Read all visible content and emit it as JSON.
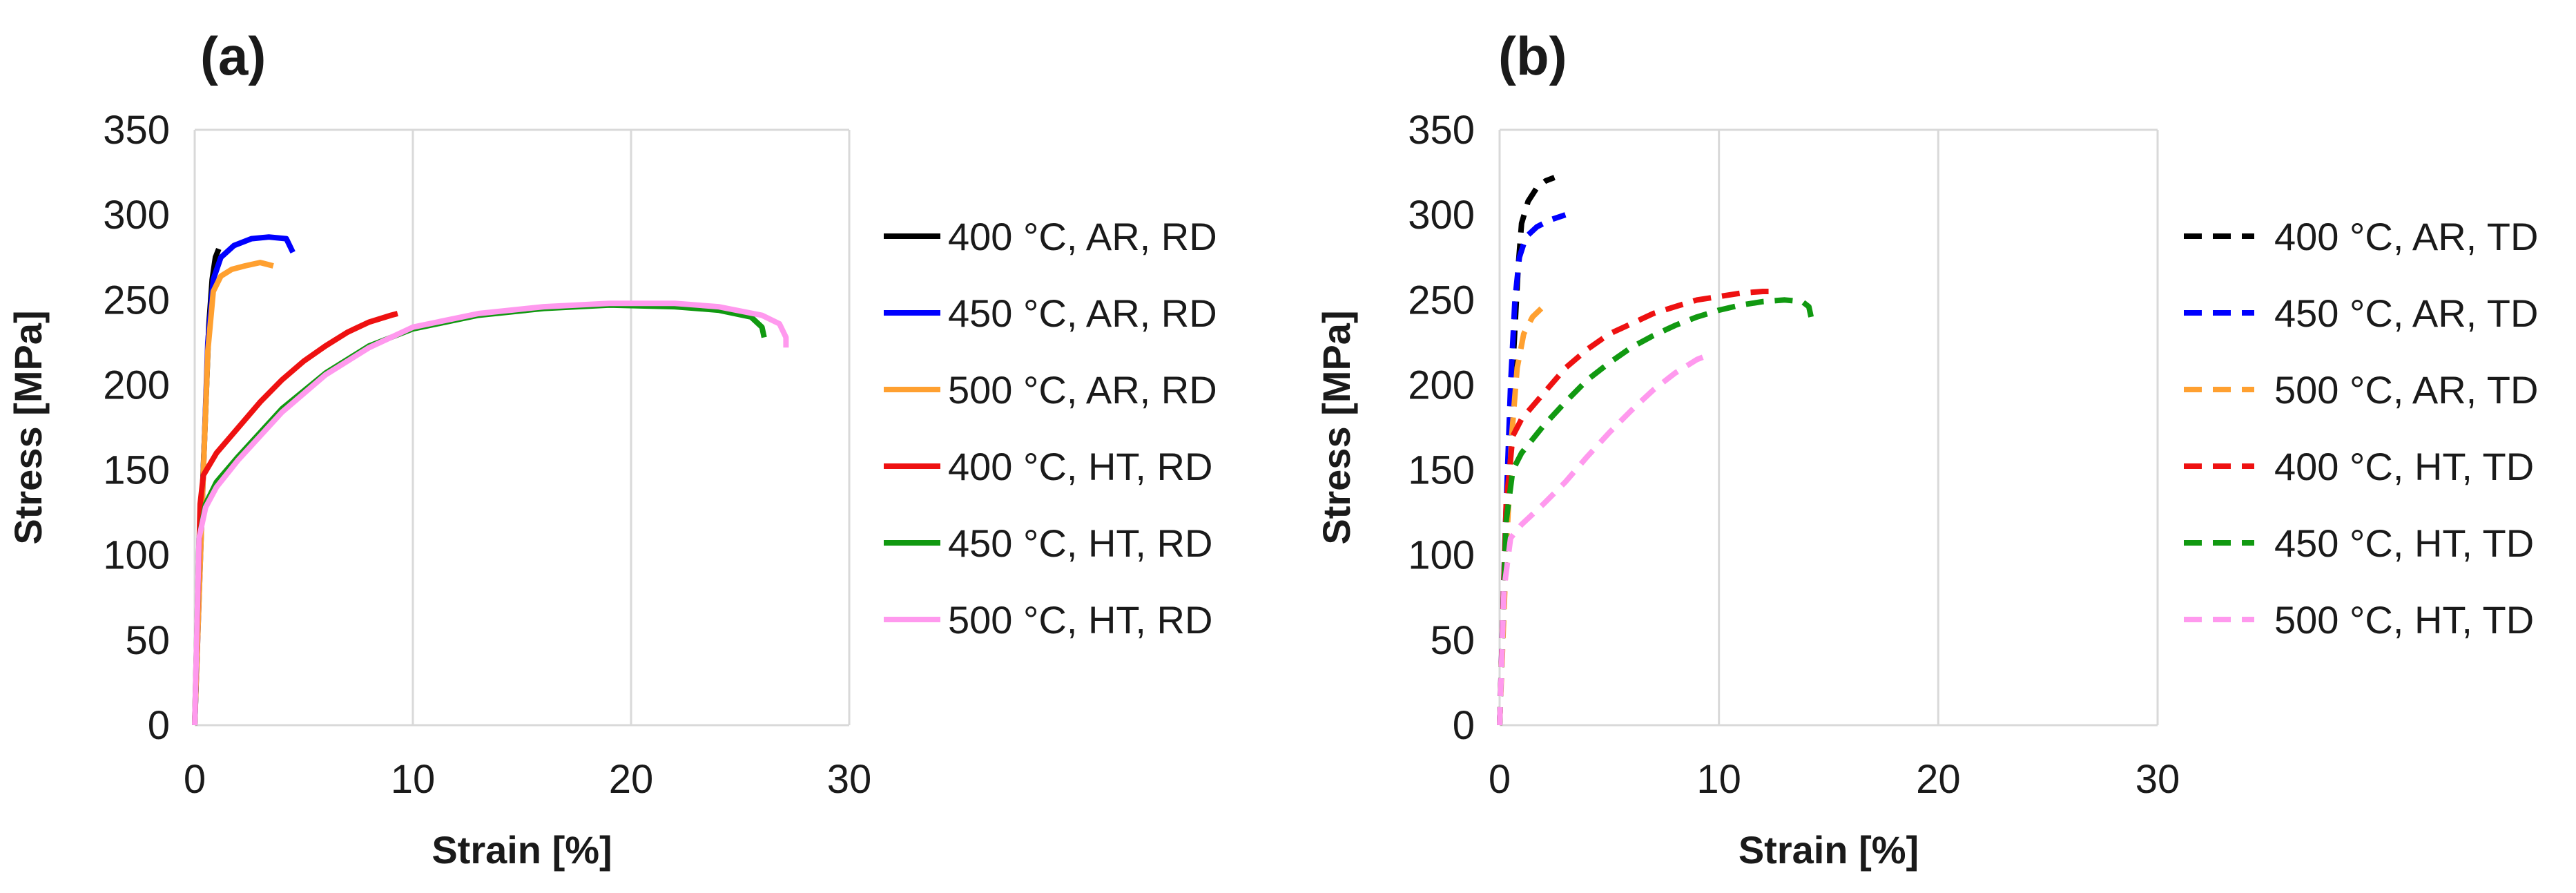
{
  "chart_data": [
    {
      "type": "line",
      "panel_label": "(a)",
      "xlabel": "Strain [%]",
      "ylabel": "Stress [MPa]",
      "xlim": [
        0,
        30
      ],
      "ylim": [
        0,
        350
      ],
      "xticks": [
        "0",
        "10",
        "20",
        "30"
      ],
      "yticks": [
        "0",
        "50",
        "100",
        "150",
        "200",
        "250",
        "300",
        "350"
      ],
      "grid": "vertical",
      "legend_position": "right",
      "series": [
        {
          "name": "400 °C, AR, RD",
          "color": "#000000",
          "dash": "solid",
          "points": [
            [
              0,
              0
            ],
            [
              0.3,
              120
            ],
            [
              0.5,
              185
            ],
            [
              0.65,
              235
            ],
            [
              0.8,
              262
            ],
            [
              0.95,
              275
            ],
            [
              1.1,
              280
            ]
          ]
        },
        {
          "name": "450 °C, AR, RD",
          "color": "#0000ff",
          "dash": "solid",
          "points": [
            [
              0,
              0
            ],
            [
              0.4,
              150
            ],
            [
              0.6,
              225
            ],
            [
              0.85,
              262
            ],
            [
              1.2,
              275
            ],
            [
              1.8,
              282
            ],
            [
              2.6,
              286
            ],
            [
              3.4,
              287
            ],
            [
              4.2,
              286
            ],
            [
              4.5,
              278
            ]
          ]
        },
        {
          "name": "500 °C, AR, RD",
          "color": "#ffa030",
          "dash": "solid",
          "points": [
            [
              0,
              0
            ],
            [
              0.4,
              150
            ],
            [
              0.6,
              220
            ],
            [
              0.85,
              255
            ],
            [
              1.2,
              264
            ],
            [
              1.7,
              268
            ],
            [
              2.3,
              270
            ],
            [
              3.0,
              272
            ],
            [
              3.6,
              270
            ]
          ]
        },
        {
          "name": "400 °C, HT, RD",
          "color": "#ee1111",
          "dash": "solid",
          "points": [
            [
              0,
              0
            ],
            [
              0.25,
              130
            ],
            [
              0.4,
              147
            ],
            [
              1,
              160
            ],
            [
              2,
              175
            ],
            [
              3,
              190
            ],
            [
              4,
              203
            ],
            [
              5,
              214
            ],
            [
              6,
              223
            ],
            [
              7,
              231
            ],
            [
              8,
              237
            ],
            [
              9,
              241
            ],
            [
              9.3,
              242
            ]
          ]
        },
        {
          "name": "450 °C, HT, RD",
          "color": "#119911",
          "dash": "solid",
          "points": [
            [
              0,
              0
            ],
            [
              0.2,
              110
            ],
            [
              0.5,
              130
            ],
            [
              1,
              143
            ],
            [
              2,
              158
            ],
            [
              3,
              172
            ],
            [
              4,
              186
            ],
            [
              6,
              207
            ],
            [
              8,
              223
            ],
            [
              10,
              233
            ],
            [
              13,
              241
            ],
            [
              16,
              245
            ],
            [
              19,
              247
            ],
            [
              22,
              246
            ],
            [
              24,
              244
            ],
            [
              25.5,
              240
            ],
            [
              26,
              234
            ],
            [
              26.1,
              228
            ]
          ]
        },
        {
          "name": "500 °C, HT, RD",
          "color": "#ff99ee",
          "dash": "solid",
          "points": [
            [
              0,
              0
            ],
            [
              0.2,
              110
            ],
            [
              0.5,
              128
            ],
            [
              1,
              140
            ],
            [
              2,
              156
            ],
            [
              3,
              170
            ],
            [
              4,
              184
            ],
            [
              6,
              206
            ],
            [
              8,
              222
            ],
            [
              10,
              234
            ],
            [
              13,
              242
            ],
            [
              16,
              246
            ],
            [
              19,
              248
            ],
            [
              22,
              248
            ],
            [
              24,
              246
            ],
            [
              26,
              241
            ],
            [
              26.8,
              236
            ],
            [
              27.1,
              228
            ],
            [
              27.1,
              222
            ]
          ]
        }
      ]
    },
    {
      "type": "line",
      "panel_label": "(b)",
      "xlabel": "Strain [%]",
      "ylabel": "Stress [MPa]",
      "xlim": [
        0,
        30
      ],
      "ylim": [
        0,
        350
      ],
      "xticks": [
        "0",
        "10",
        "20",
        "30"
      ],
      "yticks": [
        "0",
        "50",
        "100",
        "150",
        "200",
        "250",
        "300",
        "350"
      ],
      "grid": "vertical",
      "legend_position": "right",
      "series": [
        {
          "name": "400 °C, AR, TD",
          "color": "#000000",
          "dash": "dashed",
          "points": [
            [
              0,
              0
            ],
            [
              0.3,
              120
            ],
            [
              0.6,
              210
            ],
            [
              0.85,
              270
            ],
            [
              1.0,
              295
            ],
            [
              1.3,
              308
            ],
            [
              1.7,
              316
            ],
            [
              2.1,
              320
            ],
            [
              2.5,
              322
            ]
          ]
        },
        {
          "name": "450 °C, AR, TD",
          "color": "#0000ff",
          "dash": "dashed",
          "points": [
            [
              0,
              0
            ],
            [
              0.25,
              110
            ],
            [
              0.5,
              200
            ],
            [
              0.7,
              250
            ],
            [
              0.9,
              275
            ],
            [
              1.2,
              287
            ],
            [
              1.7,
              293
            ],
            [
              2.3,
              297
            ],
            [
              3.0,
              300
            ]
          ]
        },
        {
          "name": "500 °C, AR, TD",
          "color": "#ffa030",
          "dash": "dashed",
          "points": [
            [
              0,
              0
            ],
            [
              0.3,
              100
            ],
            [
              0.55,
              170
            ],
            [
              0.8,
              210
            ],
            [
              1.1,
              230
            ],
            [
              1.5,
              240
            ],
            [
              1.9,
              245
            ]
          ]
        },
        {
          "name": "400 °C, HT, TD",
          "color": "#ee1111",
          "dash": "dashed",
          "points": [
            [
              0,
              0
            ],
            [
              0.3,
              130
            ],
            [
              0.6,
              170
            ],
            [
              1,
              180
            ],
            [
              2,
              195
            ],
            [
              3,
              210
            ],
            [
              4,
              221
            ],
            [
              5,
              230
            ],
            [
              6,
              236
            ],
            [
              7,
              242
            ],
            [
              8,
              246
            ],
            [
              9,
              250
            ],
            [
              10,
              252
            ],
            [
              11,
              254
            ],
            [
              12,
              255
            ],
            [
              12.5,
              255
            ]
          ]
        },
        {
          "name": "450 °C, HT, TD",
          "color": "#119911",
          "dash": "dashed",
          "points": [
            [
              0,
              0
            ],
            [
              0.3,
              120
            ],
            [
              0.6,
              150
            ],
            [
              1,
              160
            ],
            [
              2,
              176
            ],
            [
              3,
              190
            ],
            [
              4,
              203
            ],
            [
              5,
              213
            ],
            [
              6,
              222
            ],
            [
              7,
              229
            ],
            [
              8,
              235
            ],
            [
              9,
              240
            ],
            [
              10,
              244
            ],
            [
              11,
              247
            ],
            [
              12,
              249
            ],
            [
              13,
              250
            ],
            [
              13.8,
              249
            ],
            [
              14.1,
              246
            ],
            [
              14.2,
              240
            ]
          ]
        },
        {
          "name": "500 °C, HT, TD",
          "color": "#ff99ee",
          "dash": "dashed",
          "points": [
            [
              0,
              0
            ],
            [
              0.2,
              80
            ],
            [
              0.5,
              110
            ],
            [
              1,
              118
            ],
            [
              2,
              130
            ],
            [
              3,
              143
            ],
            [
              4,
              158
            ],
            [
              5,
              172
            ],
            [
              6,
              185
            ],
            [
              7,
              197
            ],
            [
              8,
              207
            ],
            [
              9,
              215
            ],
            [
              9.4,
              217
            ]
          ]
        }
      ]
    }
  ]
}
